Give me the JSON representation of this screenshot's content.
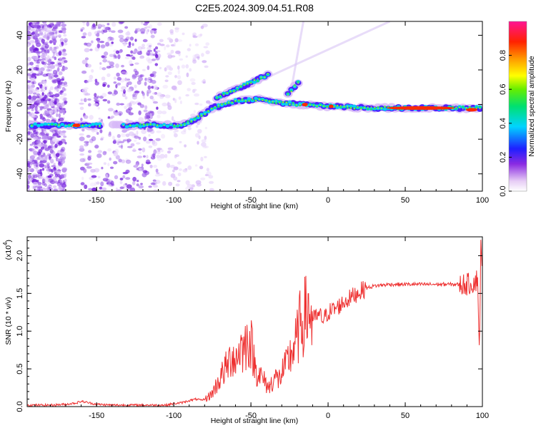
{
  "title": "C2E5.2024.309.04.51.R08",
  "chart_data": [
    {
      "type": "heatmap",
      "xlabel": "Height of straight line (km)",
      "ylabel": "Frequency (Hz)",
      "xlim": [
        -195,
        100
      ],
      "ylim": [
        -50,
        48
      ],
      "xticks": [
        -150,
        -100,
        -50,
        0,
        50,
        100
      ],
      "yticks": [
        -40,
        -20,
        0,
        20,
        40
      ],
      "colorbar": {
        "label": "Normalized spectral amplitude",
        "range": [
          0,
          1
        ],
        "ticks": [
          "0.0",
          "0.2",
          "0.4",
          "0.6",
          "0.8"
        ]
      },
      "features": [
        {
          "name": "main-trace",
          "points": [
            [
              -192,
              -12
            ],
            [
              -150,
              -12
            ],
            [
              -110,
              -12
            ],
            [
              -95,
              -12
            ],
            [
              -85,
              -8
            ],
            [
              -75,
              -2
            ],
            [
              -60,
              2
            ],
            [
              -45,
              3
            ],
            [
              -30,
              1
            ],
            [
              -15,
              0
            ],
            [
              0,
              -1
            ],
            [
              25,
              -2
            ],
            [
              60,
              -2
            ],
            [
              85,
              -2
            ],
            [
              100,
              -2
            ]
          ]
        },
        {
          "name": "upper-branch",
          "points": [
            [
              -72,
              4
            ],
            [
              -62,
              8
            ],
            [
              -52,
              12
            ],
            [
              -44,
              15
            ],
            [
              -38,
              18
            ]
          ]
        },
        {
          "name": "side-branch",
          "points": [
            [
              -26,
              6
            ],
            [
              -22,
              10
            ],
            [
              -18,
              14
            ]
          ]
        }
      ]
    },
    {
      "type": "line",
      "xlabel": "Height of straight line (km)",
      "ylabel": "SNR (10 * v/v)",
      "yscale_label": "(x10",
      "yscale_exponent": "4",
      "xlim": [
        -195,
        100
      ],
      "ylim": [
        0,
        2.25
      ],
      "xticks": [
        -150,
        -100,
        -50,
        0,
        50,
        100
      ],
      "yticks": [
        "0.0",
        "0.5",
        "1.0",
        "1.5",
        "2.0"
      ],
      "series": [
        {
          "name": "SNR",
          "color": "#ee3030",
          "x": [
            -195,
            -180,
            -170,
            -163,
            -160,
            -150,
            -140,
            -120,
            -105,
            -100,
            -95,
            -90,
            -85,
            -82,
            -78,
            -75,
            -72,
            -68,
            -65,
            -62,
            -60,
            -57,
            -55,
            -52,
            -50,
            -47,
            -45,
            -42,
            -40,
            -38,
            -35,
            -32,
            -30,
            -28,
            -25,
            -22,
            -20,
            -18,
            -15,
            -13,
            -10,
            -7,
            -5,
            -3,
            0,
            5,
            10,
            15,
            20,
            25,
            30,
            35,
            40,
            50,
            60,
            70,
            80,
            90,
            95,
            97,
            98,
            99,
            100
          ],
          "values": [
            0.02,
            0.02,
            0.03,
            0.05,
            0.07,
            0.03,
            0.02,
            0.02,
            0.02,
            0.04,
            0.05,
            0.08,
            0.1,
            0.08,
            0.12,
            0.18,
            0.3,
            0.45,
            0.55,
            0.7,
            0.6,
            0.8,
            0.75,
            0.9,
            0.85,
            0.5,
            0.45,
            0.35,
            0.3,
            0.25,
            0.4,
            0.35,
            0.45,
            0.5,
            0.65,
            0.8,
            0.9,
            1.1,
            1.2,
            1.3,
            1.15,
            1.2,
            1.2,
            1.15,
            1.25,
            1.3,
            1.38,
            1.45,
            1.52,
            1.57,
            1.6,
            1.61,
            1.62,
            1.62,
            1.62,
            1.62,
            1.62,
            1.62,
            1.65,
            1.7,
            0.7,
            2.1,
            1.6
          ]
        }
      ]
    }
  ]
}
